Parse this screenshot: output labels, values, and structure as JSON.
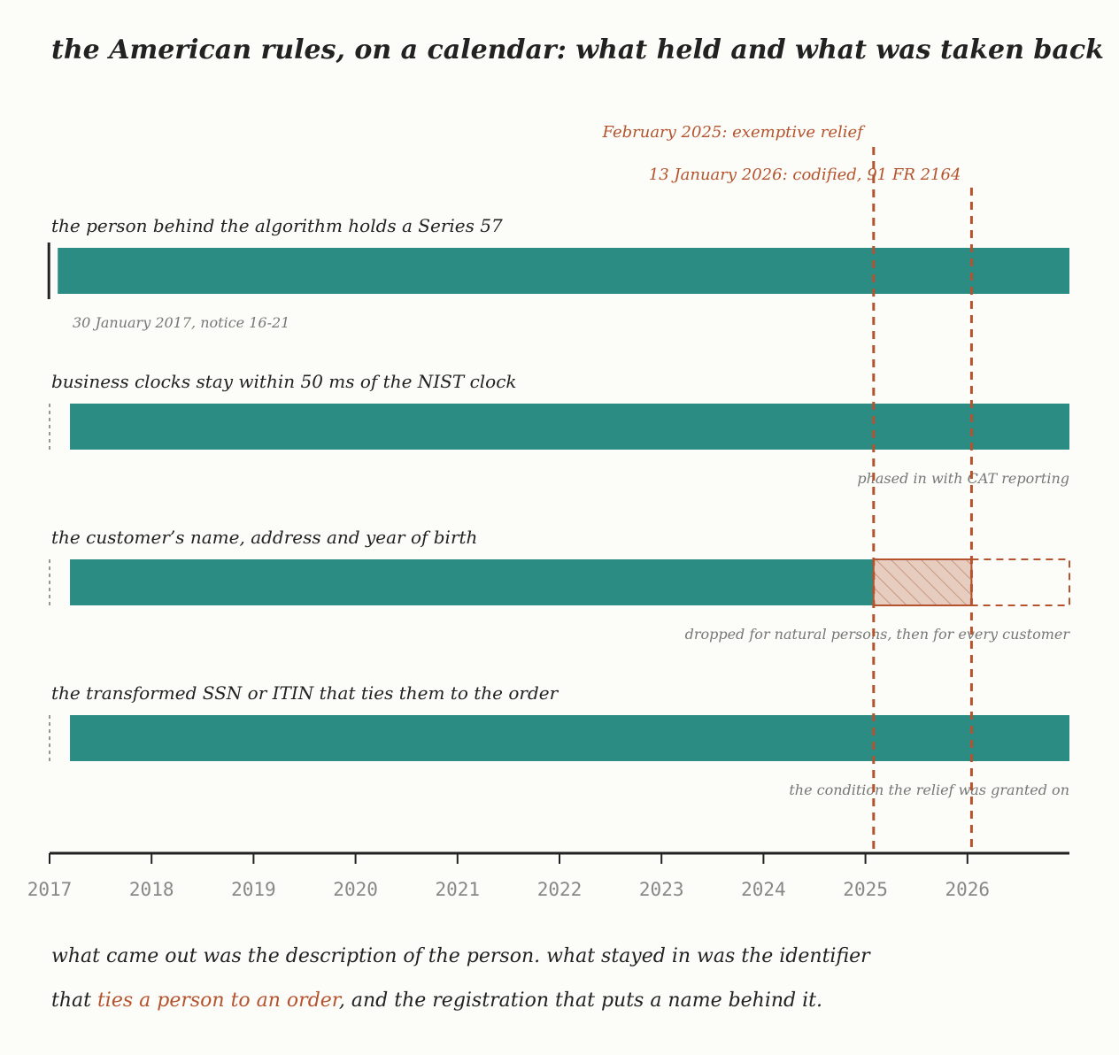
{
  "chart_data": {
    "type": "timeline",
    "title": "the American rules, on a calendar: what held and what was taken back",
    "x_axis": {
      "ticks": [
        "2017",
        "2018",
        "2019",
        "2020",
        "2021",
        "2022",
        "2023",
        "2024",
        "2025",
        "2026"
      ],
      "range": [
        2017,
        2027
      ]
    },
    "events": [
      {
        "label": "February 2025: exemptive relief",
        "date": 2025.08
      },
      {
        "label": "13 January 2026: codified, 91 FR 2164",
        "date": 2026.04
      }
    ],
    "rows": [
      {
        "label": "the person behind the algorithm holds a Series 57",
        "start": 2017.08,
        "end": 2027,
        "start_marker": "solid",
        "note": "30 January 2017, notice 16-21",
        "note_align": "left"
      },
      {
        "label": "business clocks stay within 50 ms of the NIST clock",
        "start": 2017.2,
        "end": 2027,
        "start_marker": "dotted",
        "note": "phased in with CAT reporting",
        "note_align": "right"
      },
      {
        "label": "the customer’s name, address and year of birth",
        "start": 2017.2,
        "end": 2025.08,
        "start_marker": "dotted",
        "relief_end": 2026.04,
        "removed_end": 2027,
        "note": "dropped for natural persons, then for every customer",
        "note_align": "right"
      },
      {
        "label": "the transformed SSN or ITIN that ties them to the order",
        "start": 2017.2,
        "end": 2027,
        "start_marker": "dotted",
        "note": "the condition the relief was granted on",
        "note_align": "right"
      }
    ],
    "colors": {
      "held": "#2a8c82",
      "event": "#b5532e",
      "axis": "#222222",
      "note": "#777777"
    }
  },
  "caption": {
    "line1": "what came out was the description of the person. what stayed in was the identifier",
    "line2_prefix": "that ",
    "line2_accent": "ties a person to an order",
    "line2_suffix": ", and the registration that puts a name behind it."
  }
}
